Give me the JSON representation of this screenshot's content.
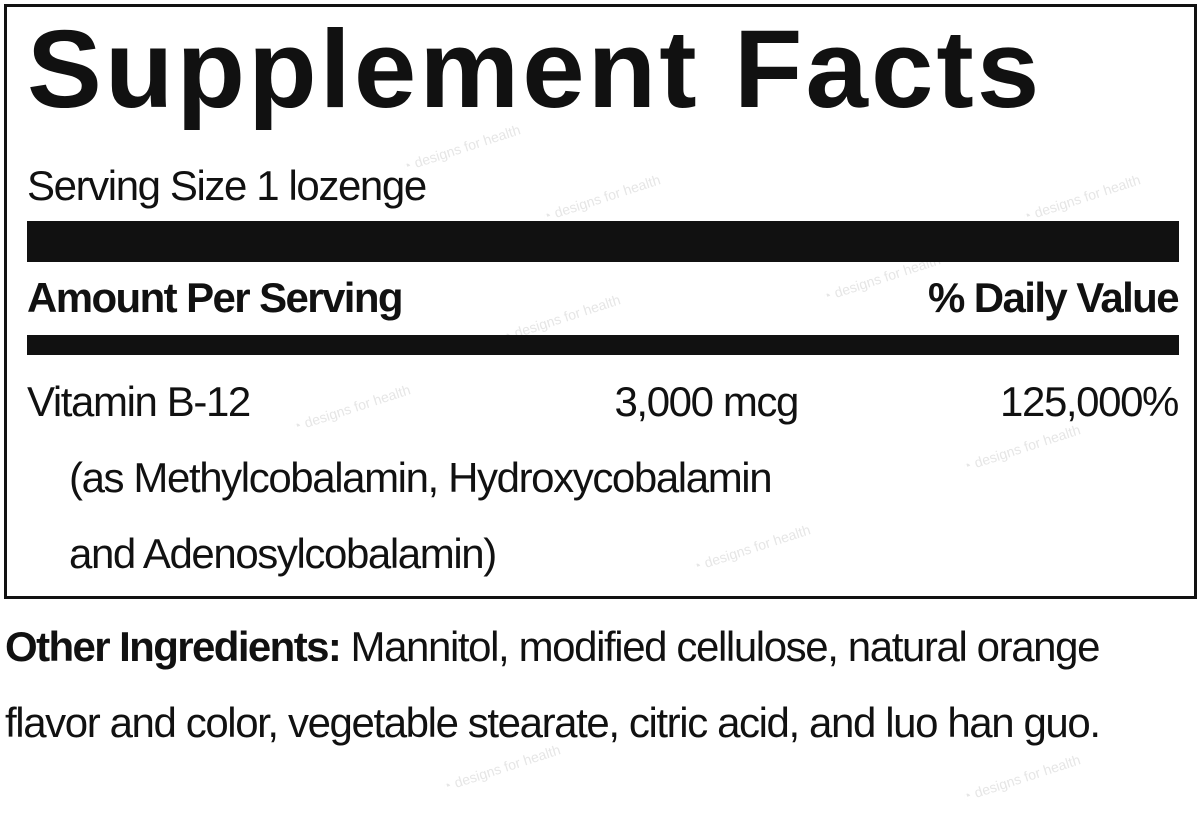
{
  "watermark": "designs for health",
  "label": {
    "title": "Supplement Facts",
    "serving_size": "Serving Size 1 lozenge",
    "header": {
      "amount": "Amount Per Serving",
      "daily_value": "% Daily Value"
    },
    "rows": [
      {
        "name": "Vitamin B-12",
        "amount": "3,000 mcg",
        "dv": "125,000%",
        "detail": [
          "(as Methylcobalamin, Hydroxycobalamin",
          "and Adenosylcobalamin)"
        ]
      }
    ]
  },
  "other_ingredients": {
    "label": "Other Ingredients:",
    "line1": " Mannitol, modified cellulose, natural orange",
    "line2": "flavor and color, vegetable stearate, citric acid, and luo han guo."
  }
}
